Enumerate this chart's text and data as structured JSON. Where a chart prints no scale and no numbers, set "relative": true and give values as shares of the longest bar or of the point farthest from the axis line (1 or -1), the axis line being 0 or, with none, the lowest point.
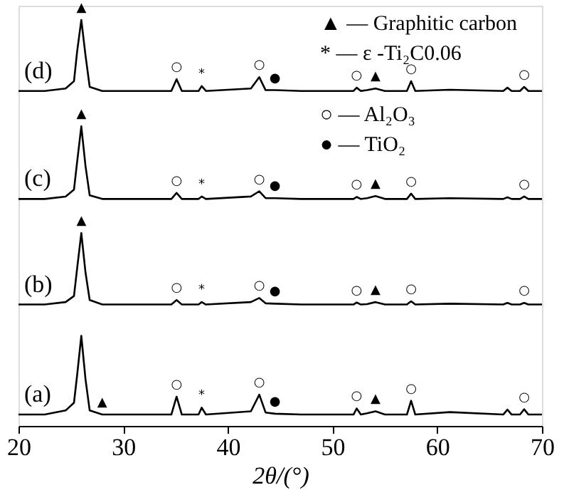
{
  "chart_data": {
    "type": "line",
    "relative": true,
    "xlabel": "2θ/(°)",
    "xlim": [
      20,
      70
    ],
    "xticks": [
      20,
      30,
      40,
      50,
      60,
      70
    ],
    "grid": false,
    "legend": false,
    "marker": "none",
    "line_style": "solid",
    "x": [
      20,
      22.5,
      24.5,
      25.3,
      25.6,
      26.0,
      26.4,
      26.8,
      28,
      34.6,
      35.1,
      35.6,
      37.2,
      37.5,
      37.9,
      42.2,
      43.0,
      43.6,
      44.5,
      47,
      52.0,
      52.3,
      52.7,
      53.3,
      54.1,
      55,
      57.1,
      57.5,
      57.9,
      61.2,
      66.3,
      66.7,
      67.1,
      67.9,
      68.3,
      68.7,
      70
    ],
    "series": [
      {
        "name": "(a)",
        "color": "#000000",
        "values": [
          0.028,
          0.028,
          0.038,
          0.057,
          0.125,
          0.222,
          0.115,
          0.038,
          0.028,
          0.028,
          0.072,
          0.028,
          0.028,
          0.045,
          0.028,
          0.036,
          0.077,
          0.033,
          0.03,
          0.028,
          0.028,
          0.043,
          0.028,
          0.031,
          0.036,
          0.028,
          0.028,
          0.062,
          0.028,
          0.034,
          0.028,
          0.04,
          0.028,
          0.028,
          0.041,
          0.028,
          0.028
        ]
      },
      {
        "name": "(b)",
        "color": "#000000",
        "values": [
          0.299,
          0.299,
          0.305,
          0.32,
          0.388,
          0.475,
          0.378,
          0.31,
          0.299,
          0.299,
          0.31,
          0.299,
          0.299,
          0.305,
          0.299,
          0.305,
          0.315,
          0.302,
          0.301,
          0.299,
          0.299,
          0.304,
          0.299,
          0.3,
          0.305,
          0.299,
          0.299,
          0.307,
          0.299,
          0.301,
          0.299,
          0.303,
          0.299,
          0.299,
          0.303,
          0.299,
          0.299
        ]
      },
      {
        "name": "(c)",
        "color": "#000000",
        "values": [
          0.559,
          0.559,
          0.565,
          0.582,
          0.65,
          0.738,
          0.64,
          0.568,
          0.559,
          0.559,
          0.574,
          0.559,
          0.559,
          0.565,
          0.559,
          0.565,
          0.578,
          0.561,
          0.561,
          0.559,
          0.559,
          0.564,
          0.559,
          0.561,
          0.566,
          0.559,
          0.559,
          0.572,
          0.559,
          0.561,
          0.559,
          0.563,
          0.559,
          0.559,
          0.565,
          0.559,
          0.559
        ]
      },
      {
        "name": "(d)",
        "color": "#000000",
        "values": [
          0.825,
          0.825,
          0.831,
          0.849,
          0.922,
          1.0,
          0.913,
          0.835,
          0.825,
          0.825,
          0.854,
          0.825,
          0.825,
          0.837,
          0.825,
          0.831,
          0.859,
          0.827,
          0.827,
          0.825,
          0.825,
          0.833,
          0.825,
          0.827,
          0.831,
          0.825,
          0.825,
          0.849,
          0.825,
          0.828,
          0.825,
          0.833,
          0.825,
          0.825,
          0.835,
          0.825,
          0.825
        ]
      }
    ],
    "annotations": [
      "▲ — Graphitic carbon",
      "* — ε -Ti₂C0.06",
      "○ — Al₂O₃",
      "● — TiO₂",
      {
        "text": "▲",
        "x": 28,
        "y": 0.028
      },
      {
        "text": "○",
        "x": 35.1,
        "y": 0.072
      },
      {
        "text": "*",
        "x": 37.5,
        "y": 0.045
      },
      {
        "text": "○",
        "x": 43.0,
        "y": 0.077
      },
      {
        "text": "●",
        "x": 44.5,
        "y": 0.03
      },
      {
        "text": "○",
        "x": 52.3,
        "y": 0.043
      },
      {
        "text": "▲",
        "x": 54.1,
        "y": 0.036
      },
      {
        "text": "○",
        "x": 57.5,
        "y": 0.062
      },
      {
        "text": "○",
        "x": 68.3,
        "y": 0.041
      },
      {
        "text": "▲",
        "x": 26.0,
        "y": 0.475
      },
      {
        "text": "○",
        "x": 35.1,
        "y": 0.31
      },
      {
        "text": "*",
        "x": 37.5,
        "y": 0.305
      },
      {
        "text": "○",
        "x": 43.0,
        "y": 0.315
      },
      {
        "text": "●",
        "x": 44.5,
        "y": 0.301
      },
      {
        "text": "○",
        "x": 52.3,
        "y": 0.304
      },
      {
        "text": "▲",
        "x": 54.1,
        "y": 0.305
      },
      {
        "text": "○",
        "x": 57.5,
        "y": 0.307
      },
      {
        "text": "○",
        "x": 68.3,
        "y": 0.303
      },
      {
        "text": "▲",
        "x": 26.0,
        "y": 0.738
      },
      {
        "text": "○",
        "x": 35.1,
        "y": 0.574
      },
      {
        "text": "*",
        "x": 37.5,
        "y": 0.565
      },
      {
        "text": "○",
        "x": 43.0,
        "y": 0.578
      },
      {
        "text": "●",
        "x": 44.5,
        "y": 0.561
      },
      {
        "text": "○",
        "x": 52.3,
        "y": 0.564
      },
      {
        "text": "▲",
        "x": 54.1,
        "y": 0.566
      },
      {
        "text": "○",
        "x": 57.5,
        "y": 0.572
      },
      {
        "text": "○",
        "x": 68.3,
        "y": 0.565
      },
      {
        "text": "▲",
        "x": 26.0,
        "y": 1.0
      },
      {
        "text": "○",
        "x": 35.1,
        "y": 0.854
      },
      {
        "text": "*",
        "x": 37.5,
        "y": 0.837
      },
      {
        "text": "○",
        "x": 43.0,
        "y": 0.859
      },
      {
        "text": "●",
        "x": 44.5,
        "y": 0.827
      },
      {
        "text": "○",
        "x": 52.3,
        "y": 0.833
      },
      {
        "text": "▲",
        "x": 54.1,
        "y": 0.831
      },
      {
        "text": "○",
        "x": 57.5,
        "y": 0.849
      },
      {
        "text": "○",
        "x": 68.3,
        "y": 0.835
      }
    ]
  }
}
